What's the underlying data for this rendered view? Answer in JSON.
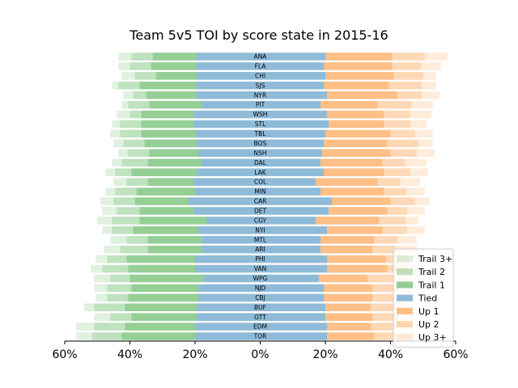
{
  "chart_data": {
    "type": "bar",
    "orientation": "horizontal-diverging",
    "title": "Team 5v5 TOI by score state in 2015-16",
    "xlabel": "",
    "ylabel": "",
    "xlim": [
      -0.6,
      0.6
    ],
    "xticks": [
      -0.6,
      -0.4,
      -0.2,
      0,
      0.2,
      0.4,
      0.6
    ],
    "xtick_labels": [
      "60%",
      "40%",
      "20%",
      "0%",
      "20%",
      "40%",
      "60%"
    ],
    "legend_position": "lower-right",
    "categories": [
      "ANA",
      "FLA",
      "CHI",
      "SJS",
      "NYR",
      "PIT",
      "WSH",
      "STL",
      "TBL",
      "BOS",
      "NSH",
      "DAL",
      "LAK",
      "COL",
      "MIN",
      "CAR",
      "DET",
      "CGY",
      "NYI",
      "MTL",
      "ARI",
      "PHI",
      "VAN",
      "WPG",
      "NJD",
      "CBJ",
      "BUF",
      "OTT",
      "EDM",
      "TOR"
    ],
    "series": [
      {
        "name": "Trail 3+",
        "color": "#2ca02c",
        "alpha": 0.15,
        "side": "left",
        "values": [
          0.04,
          0.035,
          0.04,
          0.02,
          0.03,
          0.02,
          0.04,
          0.025,
          0.03,
          0.03,
          0.03,
          0.03,
          0.03,
          0.04,
          0.03,
          0.04,
          0.045,
          0.045,
          0.03,
          0.05,
          0.05,
          0.035,
          0.035,
          0.05,
          0.04,
          0.035,
          0.03,
          0.05,
          0.055,
          0.05
        ]
      },
      {
        "name": "Trail 2",
        "color": "#2ca02c",
        "alpha": 0.3,
        "side": "left",
        "values": [
          0.065,
          0.065,
          0.065,
          0.065,
          0.04,
          0.065,
          0.035,
          0.065,
          0.065,
          0.065,
          0.065,
          0.08,
          0.05,
          0.065,
          0.065,
          0.065,
          0.07,
          0.085,
          0.065,
          0.065,
          0.085,
          0.06,
          0.08,
          0.06,
          0.075,
          0.065,
          0.095,
          0.065,
          0.095,
          0.09
        ]
      },
      {
        "name": "Trail 1",
        "color": "#2ca02c",
        "alpha": 0.5,
        "side": "left",
        "values": [
          0.135,
          0.14,
          0.125,
          0.175,
          0.155,
          0.16,
          0.16,
          0.16,
          0.165,
          0.16,
          0.15,
          0.165,
          0.2,
          0.14,
          0.18,
          0.165,
          0.165,
          0.205,
          0.2,
          0.165,
          0.165,
          0.21,
          0.205,
          0.225,
          0.205,
          0.215,
          0.22,
          0.2,
          0.215,
          0.225
        ]
      },
      {
        "name": "Tied",
        "color": "#1f77b4",
        "alpha": 0.5,
        "side": "left",
        "values": [
          0.195,
          0.195,
          0.195,
          0.195,
          0.195,
          0.18,
          0.205,
          0.205,
          0.2,
          0.195,
          0.19,
          0.18,
          0.195,
          0.205,
          0.2,
          0.22,
          0.205,
          0.165,
          0.19,
          0.18,
          0.18,
          0.2,
          0.2,
          0.175,
          0.19,
          0.19,
          0.195,
          0.195,
          0.2,
          0.2
        ]
      },
      {
        "name": "Tied",
        "color": "#1f77b4",
        "alpha": 0.5,
        "side": "right",
        "legend": false,
        "values": [
          0.2,
          0.195,
          0.2,
          0.195,
          0.205,
          0.185,
          0.205,
          0.21,
          0.2,
          0.195,
          0.19,
          0.185,
          0.195,
          0.17,
          0.185,
          0.22,
          0.21,
          0.17,
          0.205,
          0.185,
          0.185,
          0.205,
          0.205,
          0.18,
          0.195,
          0.195,
          0.2,
          0.2,
          0.205,
          0.205
        ]
      },
      {
        "name": "Up 1",
        "color": "#ff7f0e",
        "alpha": 0.5,
        "side": "right",
        "values": [
          0.205,
          0.21,
          0.21,
          0.2,
          0.215,
          0.175,
          0.175,
          0.17,
          0.2,
          0.195,
          0.21,
          0.19,
          0.185,
          0.19,
          0.195,
          0.18,
          0.18,
          0.195,
          0.17,
          0.165,
          0.16,
          0.18,
          0.185,
          0.15,
          0.15,
          0.15,
          0.14,
          0.145,
          0.135,
          0.145
        ]
      },
      {
        "name": "Up 2",
        "color": "#ff7f0e",
        "alpha": 0.3,
        "side": "right",
        "values": [
          0.1,
          0.09,
          0.09,
          0.1,
          0.075,
          0.105,
          0.08,
          0.08,
          0.075,
          0.095,
          0.08,
          0.07,
          0.08,
          0.07,
          0.07,
          0.075,
          0.06,
          0.08,
          0.075,
          0.07,
          0.07,
          0.065,
          0.06,
          0.085,
          0.08,
          0.07,
          0.075,
          0.08,
          0.08,
          0.075
        ]
      },
      {
        "name": "Up 3+",
        "color": "#ff7f0e",
        "alpha": 0.15,
        "side": "right",
        "values": [
          0.07,
          0.06,
          0.04,
          0.045,
          0.055,
          0.065,
          0.065,
          0.05,
          0.055,
          0.045,
          0.055,
          0.065,
          0.055,
          0.06,
          0.055,
          0.045,
          0.055,
          0.04,
          0.055,
          0.06,
          0.065,
          0.055,
          0.05,
          0.055,
          0.055,
          0.055,
          0.045,
          0.045,
          0.05,
          0.045
        ]
      }
    ]
  }
}
